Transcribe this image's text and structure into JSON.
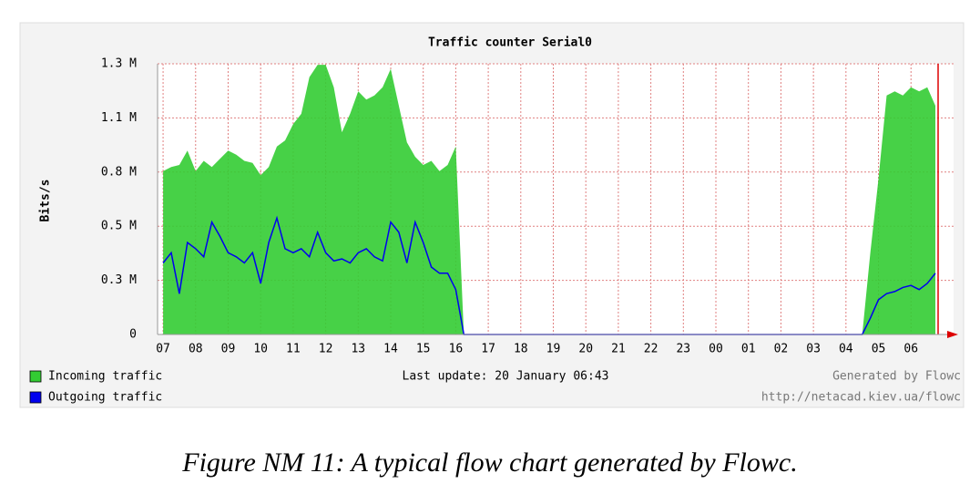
{
  "chart_data": {
    "type": "area-line",
    "title": "Traffic counter Serial0",
    "y_label": "Bits/s",
    "last_update": "Last update: 20 January 06:43",
    "generated_by": "Generated by Flowc",
    "url": "http://netacad.kiev.ua/flowc",
    "caption": "Figure NM 11: A typical flow chart generated by Flowc.",
    "grid": true,
    "xlim": [
      -0.17,
      24.31
    ],
    "ylim": [
      0,
      1.325
    ],
    "yticks": [
      0,
      {
        "value": 0.265,
        "label": "0.3 M"
      },
      {
        "value": 0.53,
        "label": "0.5 M"
      },
      {
        "value": 0.795,
        "label": "0.8 M"
      },
      {
        "value": 1.06,
        "label": "1.1 M"
      },
      {
        "value": 1.325,
        "label": "1.3 M"
      }
    ],
    "xticks": [
      {
        "value": 0,
        "label": "07"
      },
      {
        "value": 1,
        "label": "08"
      },
      {
        "value": 2,
        "label": "09"
      },
      {
        "value": 3,
        "label": "10"
      },
      {
        "value": 4,
        "label": "11"
      },
      {
        "value": 5,
        "label": "12"
      },
      {
        "value": 6,
        "label": "13"
      },
      {
        "value": 7,
        "label": "14"
      },
      {
        "value": 8,
        "label": "15"
      },
      {
        "value": 9,
        "label": "16"
      },
      {
        "value": 10,
        "label": "17"
      },
      {
        "value": 11,
        "label": "18"
      },
      {
        "value": 12,
        "label": "19"
      },
      {
        "value": 13,
        "label": "20"
      },
      {
        "value": 14,
        "label": "21"
      },
      {
        "value": 15,
        "label": "22"
      },
      {
        "value": 16,
        "label": "23"
      },
      {
        "value": 17,
        "label": "00"
      },
      {
        "value": 18,
        "label": "01"
      },
      {
        "value": 19,
        "label": "02"
      },
      {
        "value": 20,
        "label": "03"
      },
      {
        "value": 21,
        "label": "04"
      },
      {
        "value": 22,
        "label": "05"
      },
      {
        "value": 23,
        "label": "06"
      }
    ],
    "x": [
      0,
      0.25,
      0.5,
      0.75,
      1,
      1.25,
      1.5,
      1.75,
      2,
      2.25,
      2.5,
      2.75,
      3,
      3.25,
      3.5,
      3.75,
      4,
      4.25,
      4.5,
      4.75,
      5,
      5.25,
      5.5,
      5.75,
      6,
      6.25,
      6.5,
      6.75,
      7,
      7.25,
      7.5,
      7.75,
      8,
      8.25,
      8.5,
      8.75,
      9,
      9.25,
      9.5,
      9.75,
      10,
      10.25,
      10.5,
      10.75,
      11,
      11.25,
      11.5,
      11.75,
      12,
      12.25,
      12.5,
      12.75,
      13,
      13.25,
      13.5,
      13.75,
      14,
      14.25,
      14.5,
      14.75,
      15,
      15.25,
      15.5,
      15.75,
      16,
      16.25,
      16.5,
      16.75,
      17,
      17.25,
      17.5,
      17.75,
      18,
      18.25,
      18.5,
      18.75,
      19,
      19.25,
      19.5,
      19.75,
      20,
      20.25,
      20.5,
      20.75,
      21,
      21.25,
      21.5,
      21.75,
      22,
      22.25,
      22.5,
      22.75,
      23,
      23.25,
      23.5,
      23.75
    ],
    "series": [
      {
        "name": "Incoming traffic",
        "color": "#33cc33",
        "style": "area",
        "values": [
          0.8,
          0.82,
          0.83,
          0.9,
          0.8,
          0.85,
          0.82,
          0.86,
          0.9,
          0.88,
          0.85,
          0.84,
          0.78,
          0.82,
          0.92,
          0.95,
          1.03,
          1.08,
          1.26,
          1.32,
          1.32,
          1.21,
          0.99,
          1.08,
          1.19,
          1.15,
          1.17,
          1.21,
          1.3,
          1.12,
          0.94,
          0.87,
          0.83,
          0.85,
          0.8,
          0.83,
          0.92,
          0,
          0,
          0,
          0,
          0,
          0,
          0,
          0,
          0,
          0,
          0,
          0,
          0,
          0,
          0,
          0,
          0,
          0,
          0,
          0,
          0,
          0,
          0,
          0,
          0,
          0,
          0,
          0,
          0,
          0,
          0,
          0,
          0,
          0,
          0,
          0,
          0,
          0,
          0,
          0,
          0,
          0,
          0,
          0,
          0,
          0,
          0,
          0,
          0,
          0,
          0.4,
          0.76,
          1.17,
          1.19,
          1.17,
          1.21,
          1.19,
          1.21,
          1.12
        ]
      },
      {
        "name": "Outgoing traffic",
        "color": "#0000ee",
        "style": "line",
        "values": [
          0.35,
          0.4,
          0.2,
          0.45,
          0.42,
          0.38,
          0.55,
          0.48,
          0.4,
          0.38,
          0.35,
          0.4,
          0.25,
          0.45,
          0.57,
          0.42,
          0.4,
          0.42,
          0.38,
          0.5,
          0.4,
          0.36,
          0.37,
          0.35,
          0.4,
          0.42,
          0.38,
          0.36,
          0.55,
          0.5,
          0.35,
          0.55,
          0.45,
          0.33,
          0.3,
          0.3,
          0.22,
          0,
          0,
          0,
          0,
          0,
          0,
          0,
          0,
          0,
          0,
          0,
          0,
          0,
          0,
          0,
          0,
          0,
          0,
          0,
          0,
          0,
          0,
          0,
          0,
          0,
          0,
          0,
          0,
          0,
          0,
          0,
          0,
          0,
          0,
          0,
          0,
          0,
          0,
          0,
          0,
          0,
          0,
          0,
          0,
          0,
          0,
          0,
          0,
          0,
          0,
          0.08,
          0.17,
          0.2,
          0.21,
          0.23,
          0.24,
          0.22,
          0.25,
          0.3
        ]
      }
    ]
  }
}
